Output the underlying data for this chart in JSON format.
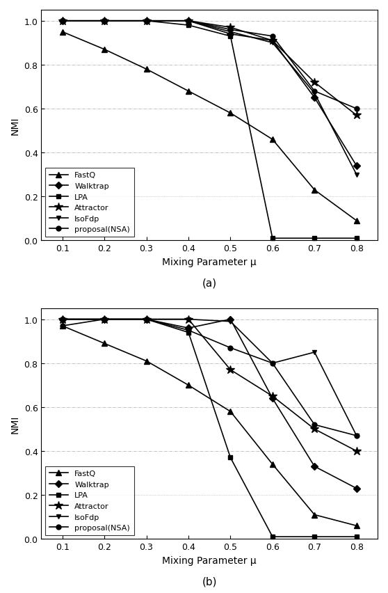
{
  "x": [
    0.1,
    0.2,
    0.3,
    0.4,
    0.5,
    0.6,
    0.7,
    0.8
  ],
  "plot_a": {
    "FastQ": [
      0.95,
      0.87,
      0.78,
      0.68,
      0.58,
      0.46,
      0.23,
      0.09
    ],
    "Walktrap": [
      1.0,
      1.0,
      1.0,
      1.0,
      0.94,
      0.91,
      0.65,
      0.34
    ],
    "LPA": [
      1.0,
      1.0,
      1.0,
      0.98,
      0.93,
      0.01,
      0.01,
      0.01
    ],
    "Attractor": [
      1.0,
      1.0,
      1.0,
      1.0,
      0.97,
      0.91,
      0.72,
      0.57
    ],
    "IsoFdp": [
      1.0,
      1.0,
      1.0,
      1.0,
      0.95,
      0.9,
      0.67,
      0.3
    ],
    "proposal(NSA)": [
      1.0,
      1.0,
      1.0,
      1.0,
      0.96,
      0.93,
      0.68,
      0.6
    ]
  },
  "plot_b": {
    "FastQ": [
      0.97,
      0.89,
      0.81,
      0.7,
      0.58,
      0.34,
      0.11,
      0.06
    ],
    "Walktrap": [
      1.0,
      1.0,
      1.0,
      0.96,
      1.0,
      0.64,
      0.33,
      0.23
    ],
    "LPA": [
      1.0,
      1.0,
      1.0,
      0.94,
      0.37,
      0.01,
      0.01,
      0.01
    ],
    "Attractor": [
      1.0,
      1.0,
      1.0,
      1.0,
      0.77,
      0.65,
      0.5,
      0.4
    ],
    "IsoFdp": [
      1.0,
      1.0,
      1.0,
      1.0,
      0.99,
      0.8,
      0.85,
      0.47
    ],
    "proposal(NSA)": [
      0.97,
      1.0,
      1.0,
      0.95,
      0.87,
      0.8,
      0.52,
      0.47
    ]
  },
  "markers": {
    "FastQ": "^",
    "Walktrap": "D",
    "LPA": "s",
    "Attractor": "*",
    "IsoFdp": "v",
    "proposal(NSA)": "o"
  },
  "series_order": [
    "FastQ",
    "Walktrap",
    "LPA",
    "Attractor",
    "IsoFdp",
    "proposal(NSA)"
  ],
  "xlabel": "Mixing Parameter μ",
  "ylabel": "NMI",
  "label_a": "(a)",
  "label_b": "(b)",
  "xlim": [
    0.05,
    0.85
  ],
  "ylim": [
    0.0,
    1.05
  ],
  "xticks": [
    0.1,
    0.2,
    0.3,
    0.4,
    0.5,
    0.6,
    0.7,
    0.8
  ],
  "yticks": [
    0.0,
    0.2,
    0.4,
    0.6,
    0.8,
    1.0
  ],
  "color": "black",
  "linewidth": 1.2,
  "markersize": 5,
  "grid_color": "#aaaaaa",
  "grid_linestyle": "-.",
  "grid_linewidth": 0.5,
  "legend_loc": "lower left",
  "legend_fontsize": 8,
  "tick_fontsize": 9,
  "label_fontsize": 10,
  "fig_label_fontsize": 11
}
